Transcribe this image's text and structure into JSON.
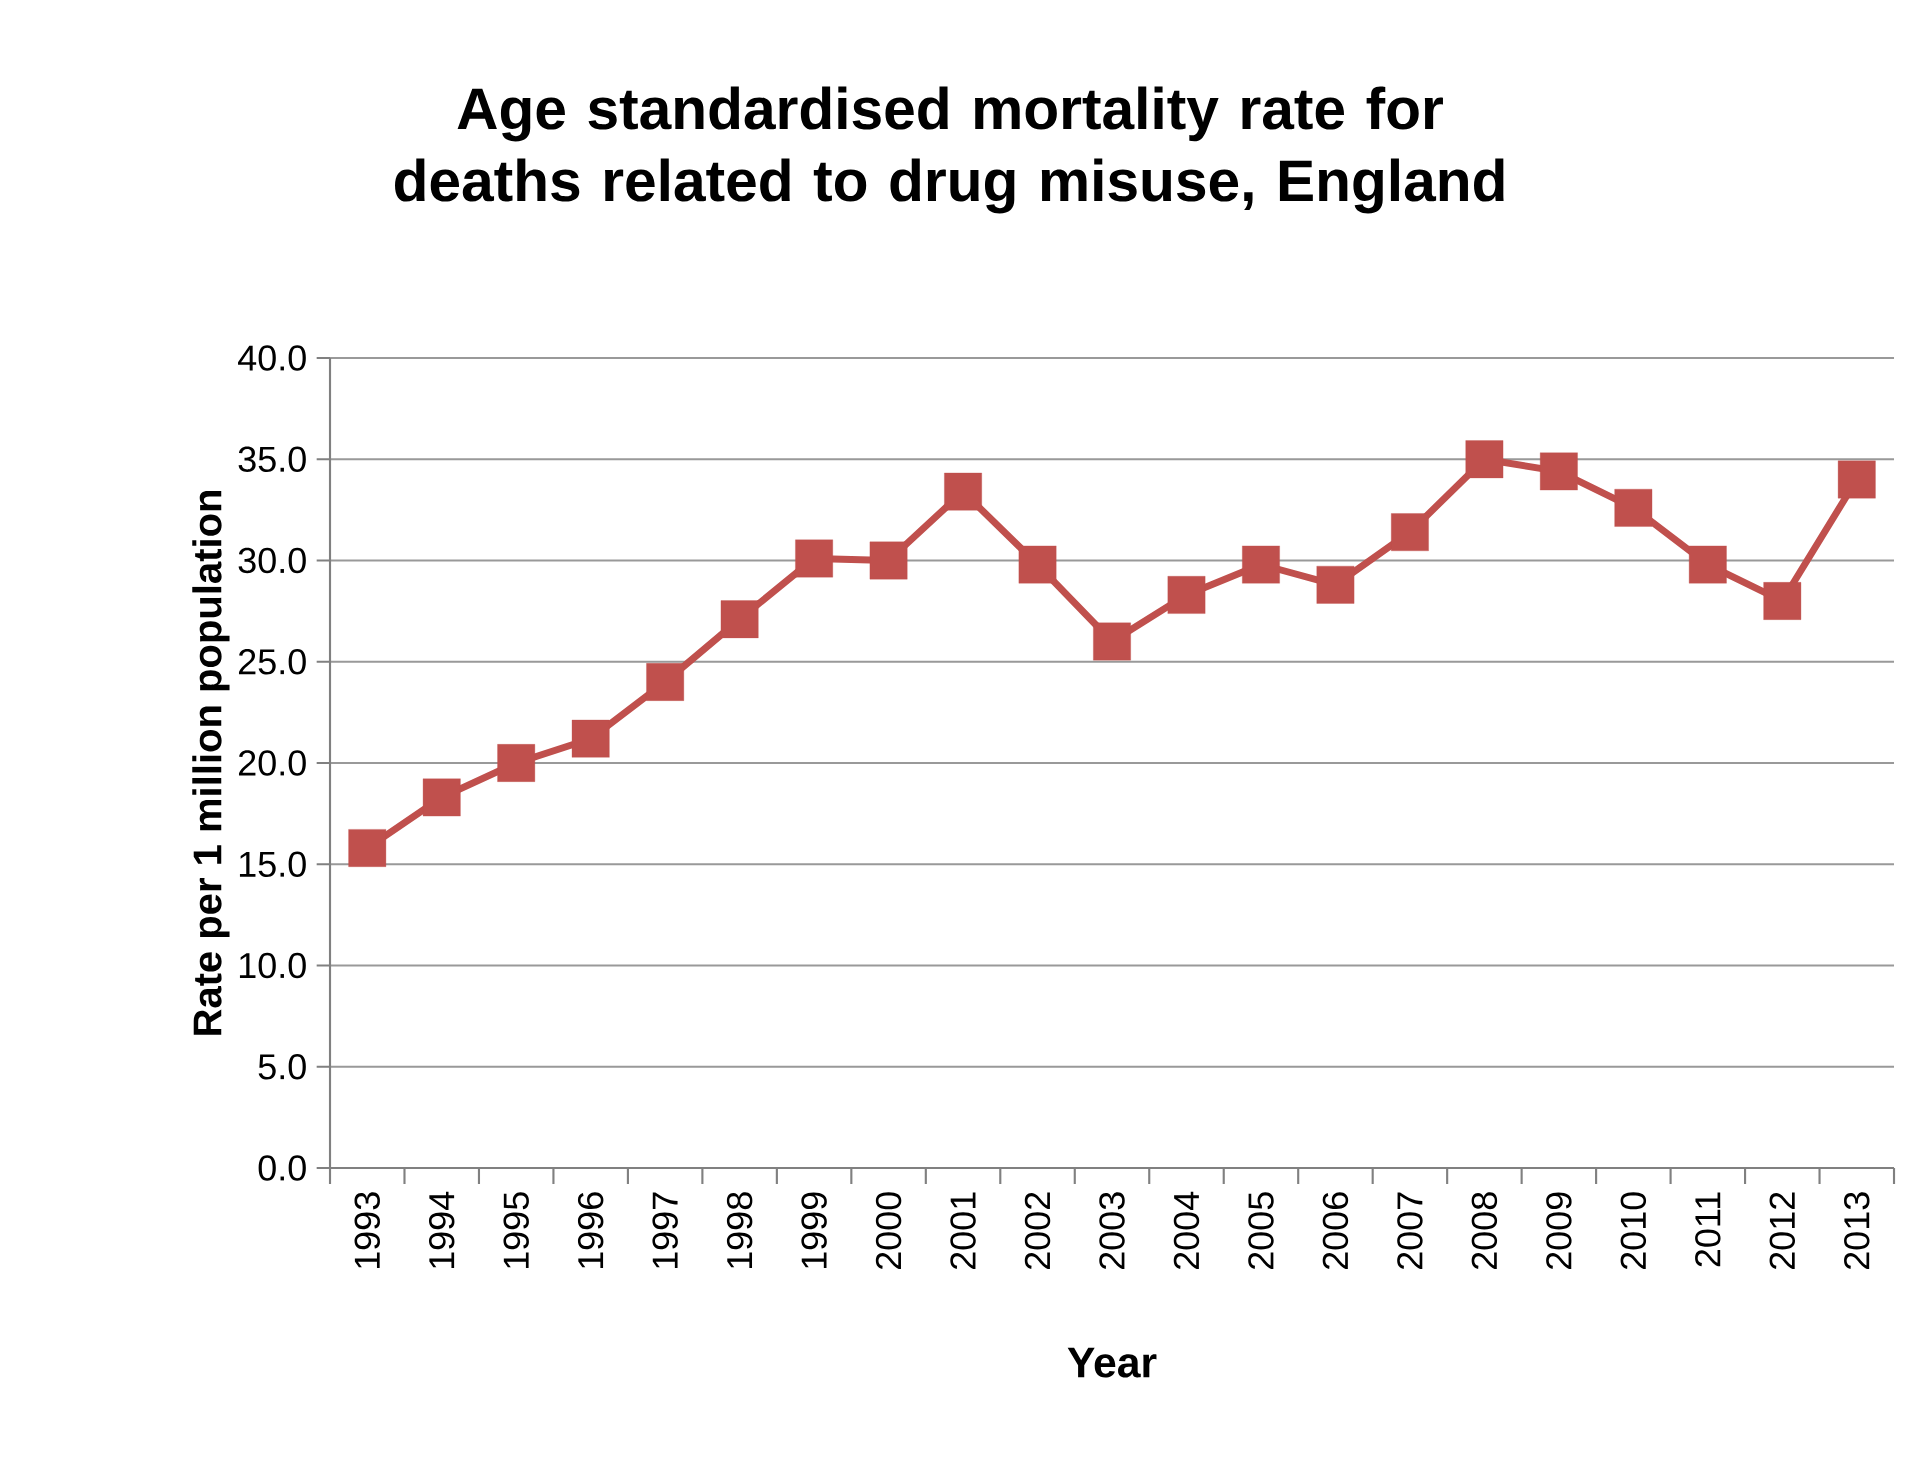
{
  "chart_data": {
    "type": "line",
    "title": "Age standardised mortality rate for deaths related to drug misuse, England",
    "xlabel": "Year",
    "ylabel": "Rate per 1 million population",
    "categories": [
      "1993",
      "1994",
      "1995",
      "1996",
      "1997",
      "1998",
      "1999",
      "2000",
      "2001",
      "2002",
      "2003",
      "2004",
      "2005",
      "2006",
      "2007",
      "2008",
      "2009",
      "2010",
      "2011",
      "2012",
      "2013"
    ],
    "values": [
      15.8,
      18.3,
      20.0,
      21.2,
      24.0,
      27.1,
      30.1,
      30.0,
      33.4,
      29.8,
      26.0,
      28.3,
      29.8,
      28.8,
      31.4,
      35.0,
      34.4,
      32.6,
      29.8,
      28.0,
      34.0
    ],
    "color": "#c0504d",
    "marker": "square",
    "grid": "y",
    "ylim": [
      0,
      40
    ],
    "yticks": [
      {
        "value": 0,
        "label": "0.0"
      },
      {
        "value": 5,
        "label": "5.0"
      },
      {
        "value": 10,
        "label": "10.0"
      },
      {
        "value": 15,
        "label": "15.0"
      },
      {
        "value": 20,
        "label": "20.0"
      },
      {
        "value": 25,
        "label": "25.0"
      },
      {
        "value": 30,
        "label": "30.0"
      },
      {
        "value": 35,
        "label": "35.0"
      },
      {
        "value": 40,
        "label": "40.0"
      }
    ]
  }
}
